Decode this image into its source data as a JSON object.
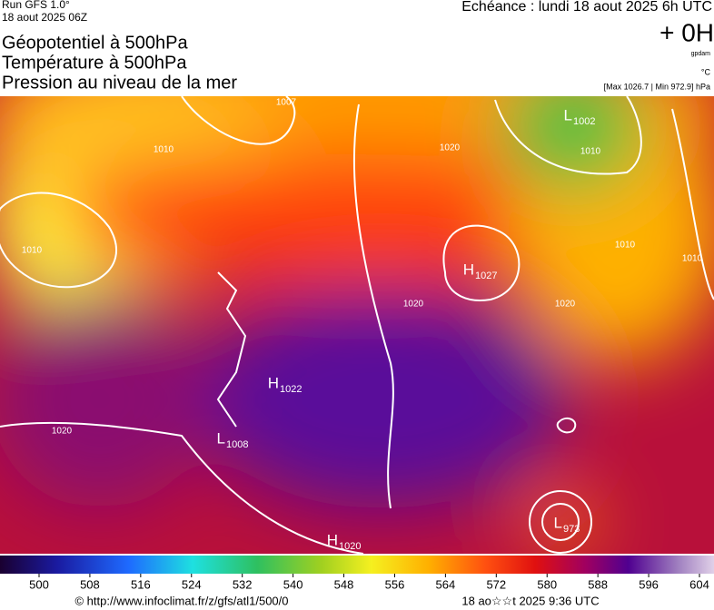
{
  "header": {
    "run": "Run GFS 1.0°",
    "date": "18 aout 2025 06Z",
    "titles": [
      "Géopotentiel à 500hPa",
      "Température à 500hPa",
      "Pression au niveau de la mer"
    ],
    "forecast": "Echéance : lundi 18 aout 2025 6h UTC",
    "offset": "+ 0H",
    "unit": "gpdam",
    "temp_unit": "°C",
    "range": "[Max 1026.7 | Min 972.9] hPa"
  },
  "map": {
    "centers": [
      {
        "type": "H",
        "value": "1027"
      },
      {
        "type": "H",
        "value": "1022"
      },
      {
        "type": "L",
        "value": "1008"
      },
      {
        "type": "H",
        "value": "1020"
      },
      {
        "type": "L",
        "value": "973"
      },
      {
        "type": "L",
        "value": "1002"
      }
    ],
    "isobar_labels": [
      "1007",
      "1010",
      "1010",
      "1020",
      "1020",
      "1010",
      "1010",
      "1010",
      "1020",
      "1020"
    ]
  },
  "colorbar": {
    "ticks": [
      500,
      508,
      516,
      524,
      532,
      540,
      548,
      556,
      564,
      572,
      580,
      588,
      596,
      604
    ]
  },
  "footer": {
    "url": "© http://www.infoclimat.fr/z/gfs/atl1/500/0",
    "time": "18 ao☆☆t 2025  9:36 UTC"
  }
}
